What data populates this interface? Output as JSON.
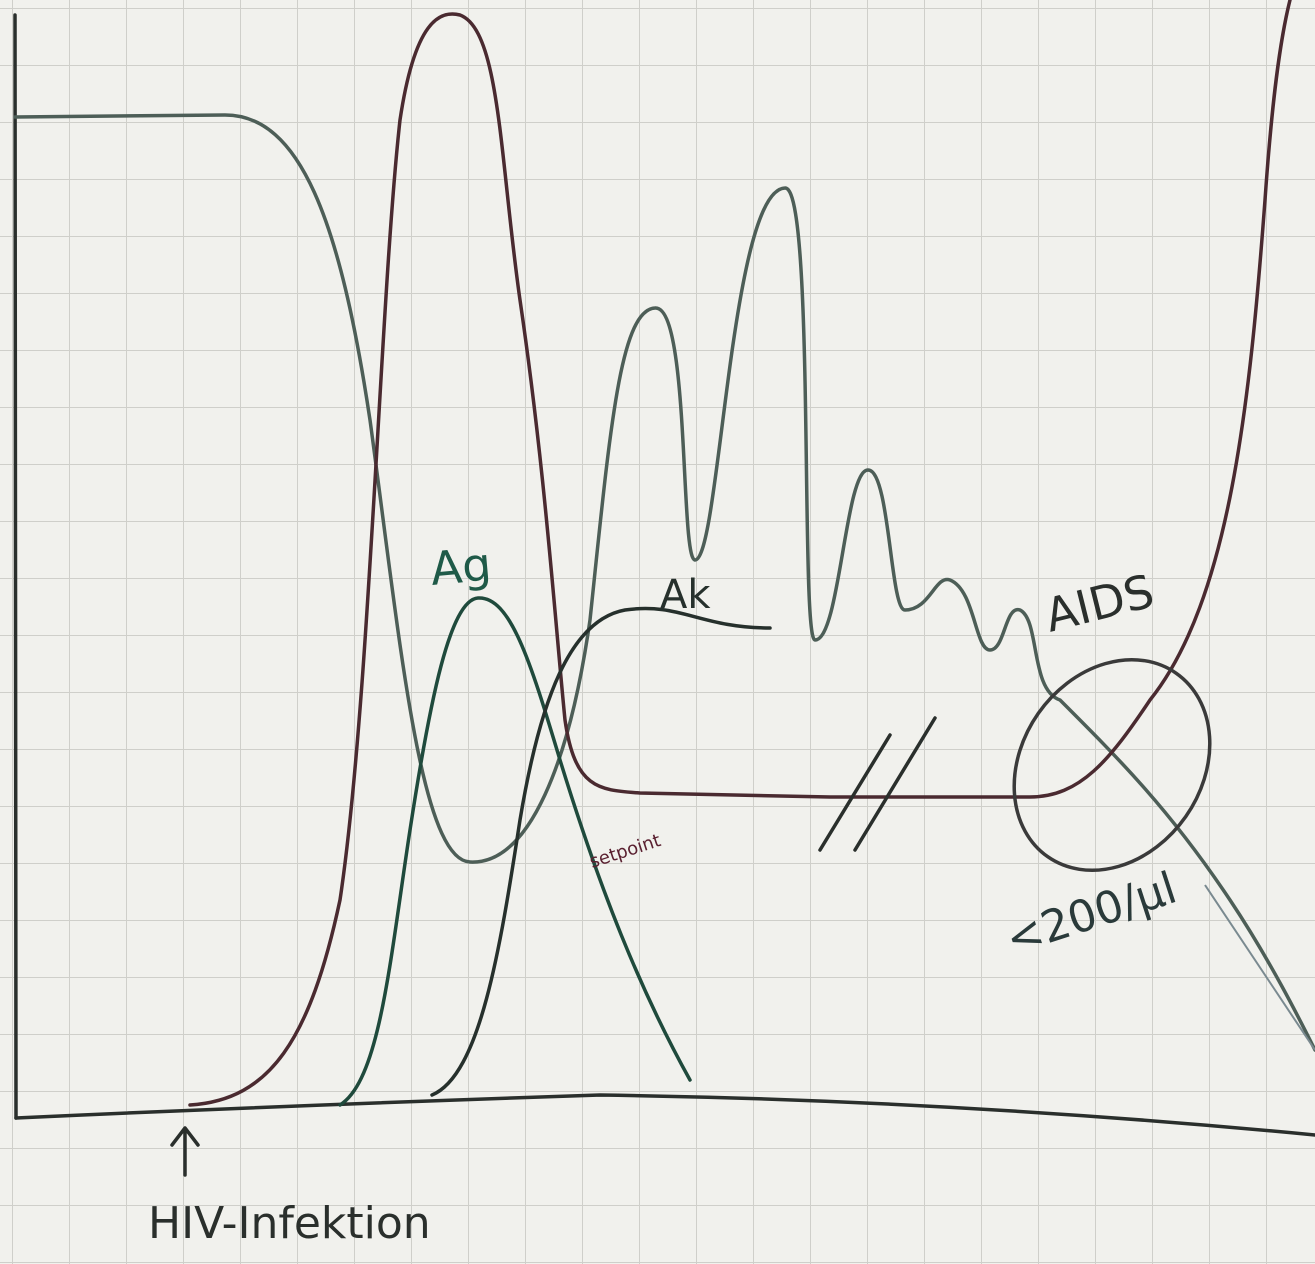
{
  "labels": {
    "antigen": "Ag",
    "antibody": "Ak",
    "aids": "AIDS",
    "setpoint": "setpoint",
    "threshold": "<200/µl",
    "infection": "HIV-Infektion"
  }
}
